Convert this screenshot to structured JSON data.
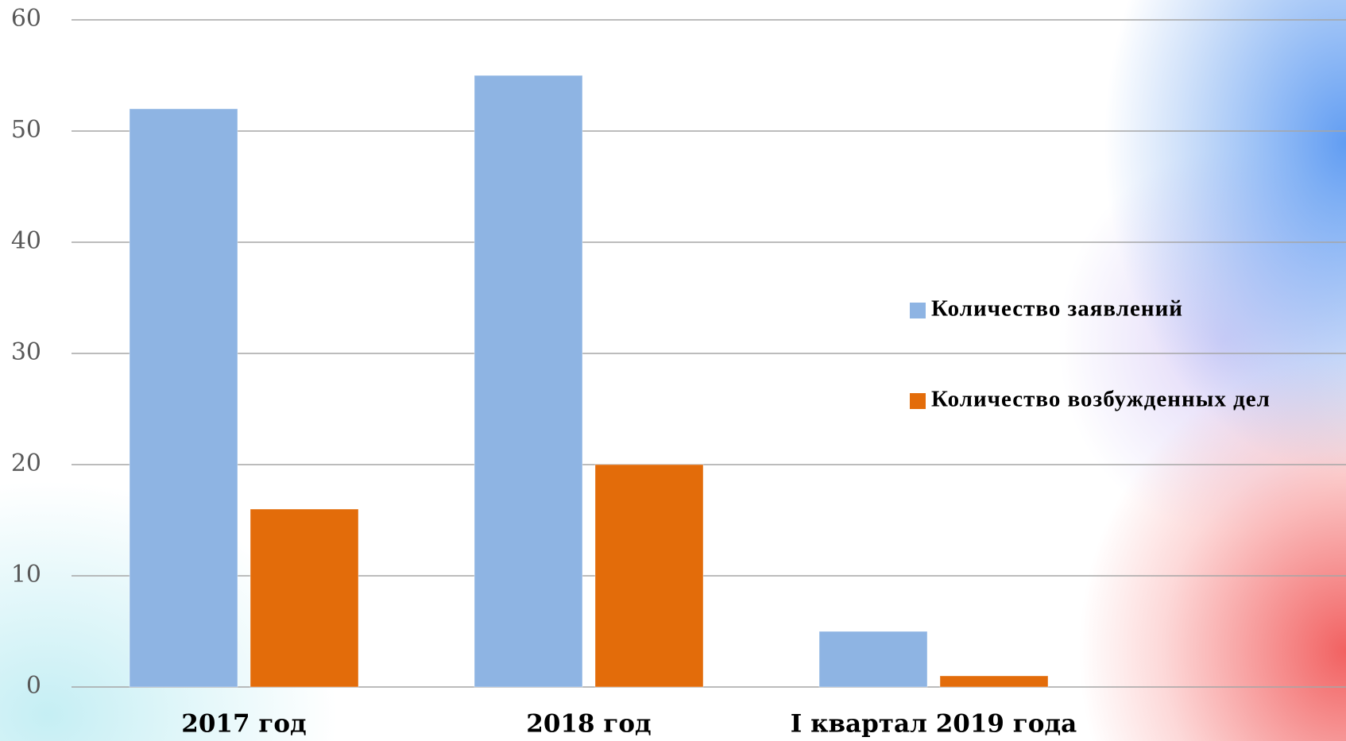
{
  "chart_data": {
    "type": "bar",
    "categories": [
      "2017 год",
      "2018 год",
      "I квартал 2019 года"
    ],
    "series": [
      {
        "name": "Количество заявлений",
        "color": "#8eb4e3",
        "values": [
          52,
          55,
          5
        ]
      },
      {
        "name": "Количество возбужденных дел",
        "color": "#e36c0a",
        "values": [
          16,
          20,
          1
        ]
      }
    ],
    "ylim": [
      0,
      60
    ],
    "yticks": [
      0,
      10,
      20,
      30,
      40,
      50,
      60
    ],
    "grid": true,
    "legend": "right"
  }
}
